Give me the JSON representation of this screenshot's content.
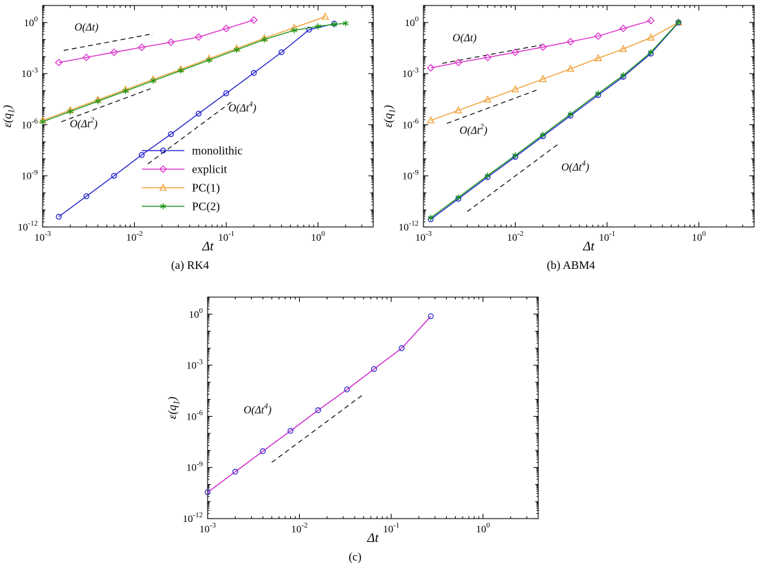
{
  "figure": {
    "background": "#ffffff",
    "panel_captions": [
      "(a) RK4",
      "(b) ABM4",
      "(c)"
    ]
  },
  "chart_data": [
    {
      "id": "a",
      "caption": "(a) RK4",
      "type": "line",
      "xscale": "log",
      "yscale": "log",
      "xlabel": "Δt",
      "ylabel": "ε(q_1)",
      "xlim": [
        0.001,
        4
      ],
      "ylim": [
        1e-12,
        10
      ],
      "grid": false,
      "x_ticks": [
        {
          "v": 0.001,
          "label": "10^{-3}"
        },
        {
          "v": 0.01,
          "label": "10^{-2}"
        },
        {
          "v": 0.1,
          "label": "10^{-1}"
        },
        {
          "v": 1,
          "label": "10^{0}"
        }
      ],
      "y_ticks": [
        {
          "v": 1,
          "label": "10^{0}"
        },
        {
          "v": 0.001,
          "label": "10^{-3}"
        },
        {
          "v": 1e-06,
          "label": "10^{-6}"
        },
        {
          "v": 1e-09,
          "label": "10^{-9}"
        },
        {
          "v": 1e-12,
          "label": "10^{-12}"
        }
      ],
      "series": [
        {
          "name": "monolithic",
          "color": "#2222cc",
          "marker": "circle",
          "x": [
            0.0015,
            0.003,
            0.006,
            0.012,
            0.025,
            0.05,
            0.1,
            0.2,
            0.4,
            0.8,
            1.5
          ],
          "y": [
            4e-12,
            6.4e-11,
            1e-09,
            1.7e-08,
            2.8e-07,
            4.5e-06,
            7e-05,
            0.0011,
            0.018,
            0.38,
            0.85
          ]
        },
        {
          "name": "explicit",
          "color": "#dd33cc",
          "marker": "diamond",
          "x": [
            0.0015,
            0.003,
            0.006,
            0.012,
            0.025,
            0.05,
            0.1,
            0.2
          ],
          "y": [
            0.0045,
            0.009,
            0.018,
            0.035,
            0.07,
            0.14,
            0.45,
            1.4
          ]
        },
        {
          "name": "PC(1)",
          "color": "#f0a035",
          "marker": "triangle",
          "x": [
            0.001,
            0.002,
            0.004,
            0.008,
            0.016,
            0.032,
            0.065,
            0.13,
            0.26,
            0.55,
            1.2
          ],
          "y": [
            1.8e-06,
            7.2e-06,
            2.9e-05,
            0.000115,
            0.00046,
            0.0018,
            0.0076,
            0.03,
            0.12,
            0.5,
            2.2
          ]
        },
        {
          "name": "PC(2)",
          "color": "#189618",
          "marker": "asterisk",
          "x": [
            0.001,
            0.002,
            0.004,
            0.008,
            0.016,
            0.032,
            0.065,
            0.13,
            0.26,
            0.55,
            1.0,
            1.5,
            2.0
          ],
          "y": [
            1.5e-06,
            6e-06,
            2.4e-05,
            9.6e-05,
            0.00038,
            0.0015,
            0.0062,
            0.025,
            0.1,
            0.35,
            0.6,
            0.78,
            0.9
          ]
        }
      ],
      "ref_lines": [
        {
          "label": "O(Δt)",
          "x1": 0.0017,
          "y1": 0.023,
          "x2": 0.016,
          "y2": 0.22,
          "label_x": 0.003,
          "label_y": 0.33
        },
        {
          "label": "O(Δt^2)",
          "x1": 0.0016,
          "y1": 1.5e-06,
          "x2": 0.015,
          "y2": 0.00013,
          "label_x": 0.0028,
          "label_y": 7e-07
        },
        {
          "label": "O(Δt^4)",
          "x1": 0.014,
          "y1": 5e-09,
          "x2": 0.12,
          "y2": 2.7e-05,
          "label_x": 0.15,
          "label_y": 6e-06
        }
      ],
      "legend": {
        "visible": true,
        "position": "inside-center-right",
        "x": 0.3,
        "y": 0.655,
        "entries": [
          "monolithic",
          "explicit",
          "PC(1)",
          "PC(2)"
        ]
      }
    },
    {
      "id": "b",
      "caption": "(b) ABM4",
      "type": "line",
      "xscale": "log",
      "yscale": "log",
      "xlabel": "Δt",
      "ylabel": "ε(q_1)",
      "xlim": [
        0.001,
        4
      ],
      "ylim": [
        1e-12,
        10
      ],
      "grid": false,
      "x_ticks": [
        {
          "v": 0.001,
          "label": "10^{-3}"
        },
        {
          "v": 0.01,
          "label": "10^{-2}"
        },
        {
          "v": 0.1,
          "label": "10^{-1}"
        },
        {
          "v": 1,
          "label": "10^{0}"
        }
      ],
      "y_ticks": [
        {
          "v": 1,
          "label": "10^{0}"
        },
        {
          "v": 0.001,
          "label": "10^{-3}"
        },
        {
          "v": 1e-06,
          "label": "10^{-6}"
        },
        {
          "v": 1e-09,
          "label": "10^{-9}"
        },
        {
          "v": 1e-12,
          "label": "10^{-12}"
        }
      ],
      "series": [
        {
          "name": "explicit",
          "color": "#dd33cc",
          "marker": "diamond",
          "x": [
            0.0012,
            0.0024,
            0.005,
            0.01,
            0.02,
            0.04,
            0.08,
            0.15,
            0.3
          ],
          "y": [
            0.0022,
            0.0045,
            0.009,
            0.018,
            0.036,
            0.075,
            0.16,
            0.45,
            1.3
          ]
        },
        {
          "name": "PC(1)",
          "color": "#f0a035",
          "marker": "triangle",
          "x": [
            0.0012,
            0.0024,
            0.005,
            0.01,
            0.02,
            0.04,
            0.08,
            0.15,
            0.3,
            0.6
          ],
          "y": [
            1.8e-06,
            7e-06,
            3e-05,
            0.00012,
            0.00048,
            0.0019,
            0.008,
            0.028,
            0.13,
            1.0
          ]
        },
        {
          "name": "monolithic",
          "color": "#2222cc",
          "marker": "circle",
          "x": [
            0.0012,
            0.0024,
            0.005,
            0.01,
            0.02,
            0.04,
            0.08,
            0.15,
            0.3,
            0.6
          ],
          "y": [
            2.8e-12,
            4.5e-11,
            8.5e-10,
            1.3e-08,
            2.1e-07,
            3.4e-06,
            5.5e-05,
            0.00065,
            0.015,
            1.0
          ]
        },
        {
          "name": "PC(2)",
          "color": "#189618",
          "marker": "asterisk",
          "x": [
            0.0012,
            0.0024,
            0.005,
            0.01,
            0.02,
            0.04,
            0.08,
            0.15,
            0.3,
            0.6
          ],
          "y": [
            3.5e-12,
            5.5e-11,
            1.05e-09,
            1.6e-08,
            2.6e-07,
            4.2e-06,
            6.8e-05,
            0.0008,
            0.018,
            1.05
          ]
        }
      ],
      "ref_lines": [
        {
          "label": "O(Δt)",
          "x1": 0.0016,
          "y1": 0.004,
          "x2": 0.02,
          "y2": 0.05,
          "label_x": 0.0028,
          "label_y": 0.08
        },
        {
          "label": "O(Δt^2)",
          "x1": 0.0018,
          "y1": 1.2e-06,
          "x2": 0.018,
          "y2": 0.00012,
          "label_x": 0.0035,
          "label_y": 3e-07
        },
        {
          "label": "O(Δt^4)",
          "x1": 0.003,
          "y1": 8e-12,
          "x2": 0.03,
          "y2": 8e-08,
          "label_x": 0.045,
          "label_y": 2e-09
        }
      ],
      "legend": {
        "visible": false
      }
    },
    {
      "id": "c",
      "caption": "(c)",
      "type": "line",
      "xscale": "log",
      "yscale": "log",
      "xlabel": "Δt",
      "ylabel": "ε(q_1)",
      "xlim": [
        0.001,
        4
      ],
      "ylim": [
        1e-12,
        10
      ],
      "grid": false,
      "x_ticks": [
        {
          "v": 0.001,
          "label": "10^{-3}"
        },
        {
          "v": 0.01,
          "label": "10^{-2}"
        },
        {
          "v": 0.1,
          "label": "10^{-1}"
        },
        {
          "v": 1,
          "label": "10^{0}"
        }
      ],
      "y_ticks": [
        {
          "v": 1,
          "label": "10^{0}"
        },
        {
          "v": 0.001,
          "label": "10^{-3}"
        },
        {
          "v": 1e-06,
          "label": "10^{-6}"
        },
        {
          "v": 1e-09,
          "label": "10^{-9}"
        },
        {
          "v": 1e-12,
          "label": "10^{-12}"
        }
      ],
      "series": [
        {
          "name": "",
          "color": "#cc22cc",
          "marker": "circle",
          "marker_color": "#3333cc",
          "x": [
            0.001,
            0.002,
            0.004,
            0.008,
            0.016,
            0.033,
            0.065,
            0.13,
            0.27
          ],
          "y": [
            3.5e-11,
            5.6e-10,
            9e-09,
            1.4e-07,
            2.3e-06,
            3.8e-05,
            0.0006,
            0.01,
            0.75
          ]
        }
      ],
      "ref_lines": [
        {
          "label": "O(Δt^4)",
          "x1": 0.005,
          "y1": 2e-09,
          "x2": 0.05,
          "y2": 2e-05,
          "label_x": 0.0035,
          "label_y": 1.5e-06
        }
      ],
      "legend": {
        "visible": false
      }
    }
  ]
}
